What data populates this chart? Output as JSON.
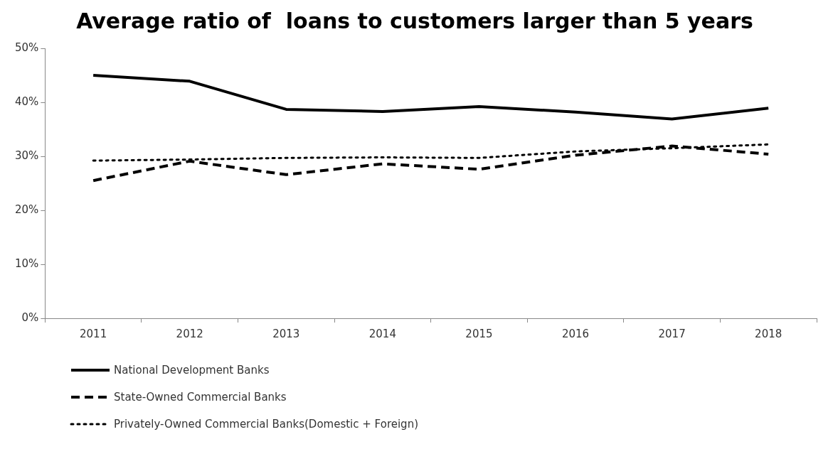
{
  "chart_data": {
    "type": "line",
    "title": "Average ratio of  loans to customers larger than 5 years",
    "categories": [
      "2011",
      "2012",
      "2013",
      "2014",
      "2015",
      "2016",
      "2017",
      "2018"
    ],
    "series": [
      {
        "name": "National Development Banks",
        "color": "#000000",
        "line_style": "solid",
        "values": [
          45.0,
          43.9,
          38.7,
          38.3,
          39.2,
          38.2,
          36.9,
          38.9
        ]
      },
      {
        "name": "State-Owned Commercial Banks",
        "color": "#000000",
        "line_style": "dashed",
        "values": [
          25.5,
          29.1,
          26.6,
          28.6,
          27.6,
          30.2,
          31.9,
          30.4
        ]
      },
      {
        "name": "Privately-Owned Commercial Banks(Domestic + Foreign)",
        "color": "#000000",
        "line_style": "dotted",
        "values": [
          29.2,
          29.4,
          29.7,
          29.8,
          29.7,
          30.9,
          31.5,
          32.2
        ]
      }
    ],
    "ylim": [
      0,
      50
    ],
    "yticks": [
      {
        "value": 0,
        "label": "0%"
      },
      {
        "value": 10,
        "label": "10%"
      },
      {
        "value": 20,
        "label": "20%"
      },
      {
        "value": 30,
        "label": "30%"
      },
      {
        "value": 40,
        "label": "40%"
      },
      {
        "value": 50,
        "label": "50%"
      }
    ],
    "grid": false,
    "legend": "bottom left",
    "marker": "none"
  }
}
